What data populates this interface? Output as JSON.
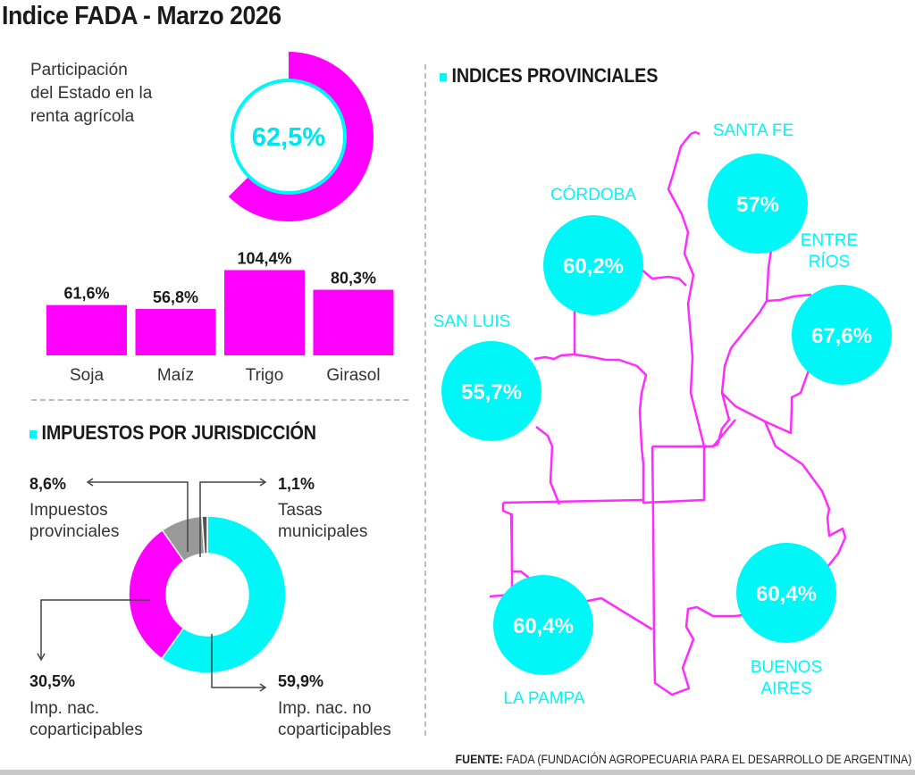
{
  "title": "Indice FADA - Marzo 2026",
  "colors": {
    "magenta": "#ff00ff",
    "cyan": "#00f7f7",
    "gray": "#999999",
    "text": "#1a1a1a",
    "map_border": "#ff2bff"
  },
  "renta": {
    "caption": "Participación\ndel Estado en la\nrenta agrícola",
    "value_label": "62,5%"
  },
  "impuestos": {
    "title": "IMPUESTOS POR JURISDICCIÓN",
    "labels": [
      {
        "pct": "8,6%",
        "name": "Impuestos\nprovinciales"
      },
      {
        "pct": "1,1%",
        "name": "Tasas\nmunicipales"
      },
      {
        "pct": "30,5%",
        "name": "Imp. nac.\ncoparticipables"
      },
      {
        "pct": "59,9%",
        "name": "Imp. nac. no\ncoparticipables"
      }
    ]
  },
  "provincias": {
    "title": "INDICES PROVINCIALES",
    "items": [
      {
        "name": "SANTA FE",
        "value_label": "57%"
      },
      {
        "name": "CÓRDOBA",
        "value_label": "60,2%"
      },
      {
        "name": "ENTRE\nRÍOS",
        "value_label": "67,6%"
      },
      {
        "name": "SAN LUIS",
        "value_label": "55,7%"
      },
      {
        "name": "LA PAMPA",
        "value_label": "60,4%"
      },
      {
        "name": "BUENOS\nAIRES",
        "value_label": "60,4%"
      }
    ]
  },
  "source": {
    "prefix": "FUENTE:",
    "text": " FADA (FUNDACIÓN AGROPECUARIA PARA EL DESARROLLO DE ARGENTINA)"
  },
  "chart_data": [
    {
      "type": "pie",
      "title": "Participación del Estado en la renta agrícola",
      "categories": [
        "Participación del Estado"
      ],
      "values": [
        62.5
      ],
      "value_labels": [
        "62,5%"
      ],
      "max": 100
    },
    {
      "type": "bar",
      "title": "Participación por cultivo",
      "categories": [
        "Soja",
        "Maíz",
        "Trigo",
        "Girasol"
      ],
      "values": [
        61.6,
        56.8,
        104.4,
        80.3
      ],
      "value_labels": [
        "61,6%",
        "56,8%",
        "104,4%",
        "80,3%"
      ],
      "xlabel": "",
      "ylabel": "",
      "ylim": [
        0,
        110
      ]
    },
    {
      "type": "pie",
      "title": "IMPUESTOS POR JURISDICCIÓN",
      "categories": [
        "Imp. nac. no coparticipables",
        "Imp. nac. coparticipables",
        "Impuestos provinciales",
        "Tasas municipales"
      ],
      "values": [
        59.9,
        30.5,
        8.6,
        1.1
      ],
      "colors": [
        "#00f7f7",
        "#ff00ff",
        "#999999",
        "#555555"
      ]
    },
    {
      "type": "table",
      "title": "INDICES PROVINCIALES",
      "categories": [
        "Santa Fe",
        "Córdoba",
        "Entre Ríos",
        "San Luis",
        "La Pampa",
        "Buenos Aires"
      ],
      "values": [
        57,
        60.2,
        67.6,
        55.7,
        60.4,
        60.4
      ]
    }
  ]
}
